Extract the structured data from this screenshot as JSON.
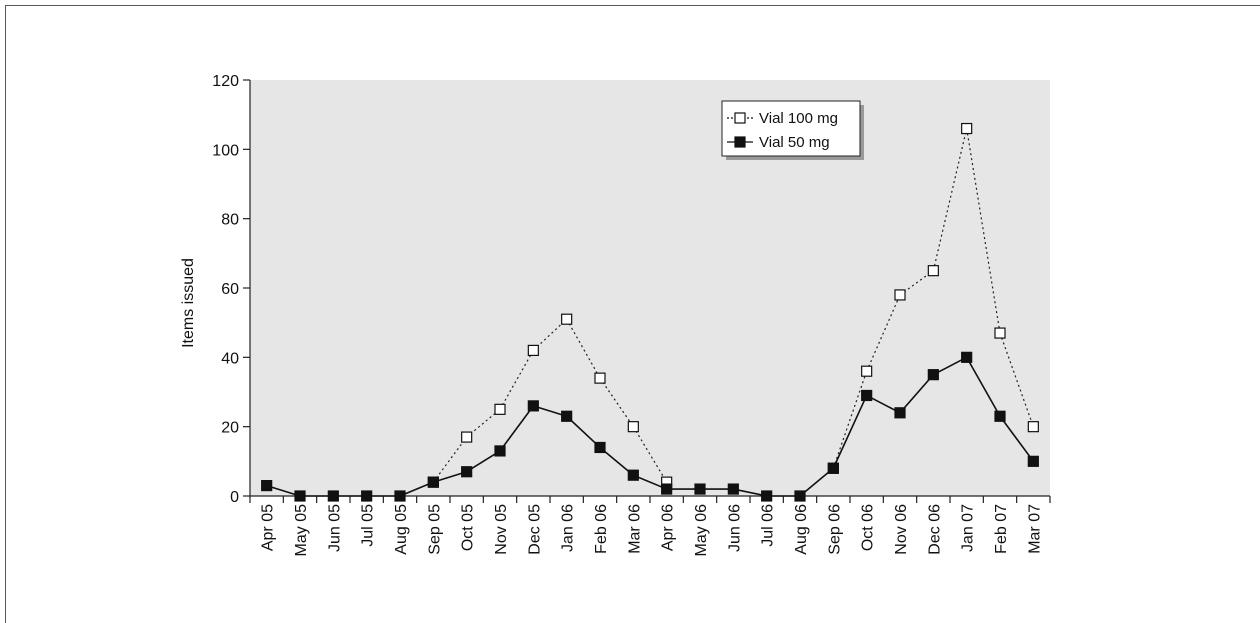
{
  "chart_data": {
    "type": "line",
    "title": "",
    "xlabel": "",
    "ylabel": "Items issued",
    "ylim": [
      0,
      120
    ],
    "yticks": [
      0,
      20,
      40,
      60,
      80,
      100,
      120
    ],
    "grid": false,
    "legend_position": "top-right",
    "plot_background": "#e6e6e6",
    "categories": [
      "Apr 05",
      "May 05",
      "Jun 05",
      "Jul 05",
      "Aug 05",
      "Sep 05",
      "Oct 05",
      "Nov 05",
      "Dec 05",
      "Jan 06",
      "Feb 06",
      "Mar 06",
      "Apr 06",
      "May 06",
      "Jun 06",
      "Jul 06",
      "Aug 06",
      "Sep 06",
      "Oct 06",
      "Nov 06",
      "Dec 06",
      "Jan 07",
      "Feb 07",
      "Mar 07"
    ],
    "series": [
      {
        "name": "Vial 100 mg",
        "marker": "open-square",
        "line_style": "dotted",
        "color": "#222222",
        "values": [
          null,
          null,
          null,
          null,
          null,
          4,
          17,
          25,
          42,
          51,
          34,
          20,
          4,
          null,
          null,
          null,
          null,
          8,
          36,
          58,
          65,
          106,
          47,
          20
        ]
      },
      {
        "name": "Vial 50 mg",
        "marker": "filled-square",
        "line_style": "solid",
        "color": "#111111",
        "values": [
          3,
          0,
          0,
          0,
          0,
          4,
          7,
          13,
          26,
          23,
          14,
          6,
          2,
          2,
          2,
          0,
          0,
          8,
          29,
          24,
          35,
          40,
          23,
          10
        ]
      }
    ]
  }
}
